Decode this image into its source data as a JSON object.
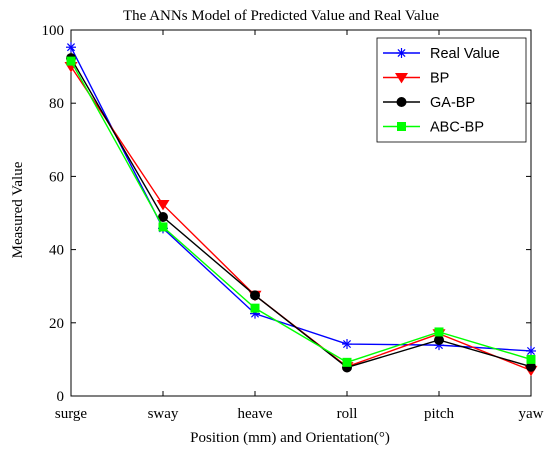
{
  "chart_data": {
    "type": "line",
    "title": "The ANNs Model of Predicted Value and Real Value",
    "xlabel": "Position (mm) and Orientation(°)",
    "ylabel": "Measured Value",
    "categories": [
      "surge",
      "sway",
      "heave",
      "roll",
      "pitch",
      "yaw"
    ],
    "ylim": [
      0,
      100
    ],
    "yticks": [
      0,
      20,
      40,
      60,
      80,
      100
    ],
    "grid": false,
    "legend_position": "top-right",
    "series": [
      {
        "name": "Real Value",
        "color": "#0000ff",
        "marker": "asterisk",
        "values": [
          95.3,
          45.8,
          22.5,
          14.2,
          13.9,
          12.3
        ]
      },
      {
        "name": "BP",
        "color": "#ff0000",
        "marker": "triangle-down",
        "values": [
          90.0,
          52.3,
          27.5,
          8.0,
          17.0,
          7.0
        ]
      },
      {
        "name": "GA-BP",
        "color": "#000000",
        "marker": "circle",
        "values": [
          92.3,
          48.9,
          27.5,
          7.8,
          15.3,
          8.0
        ]
      },
      {
        "name": "ABC-BP",
        "color": "#00ff00",
        "marker": "square",
        "values": [
          91.5,
          46.2,
          24.0,
          9.2,
          17.5,
          10.0
        ]
      }
    ]
  }
}
